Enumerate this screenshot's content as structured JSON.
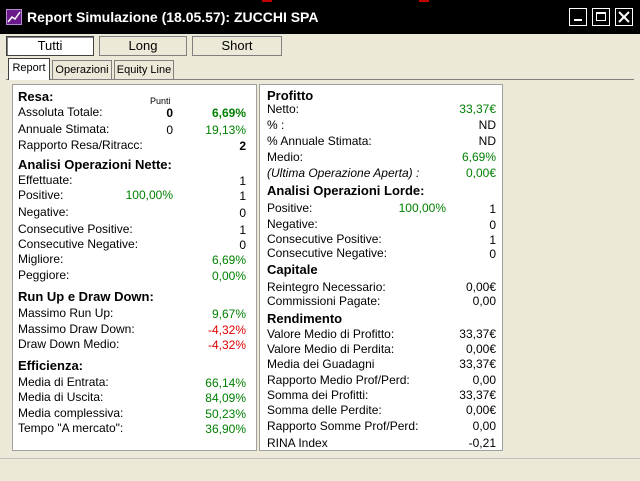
{
  "window": {
    "title": "Report Simulazione (18.05.57): ZUCCHI  SPA"
  },
  "mode_buttons": [
    "Tutti",
    "Long",
    "Short"
  ],
  "tabs": [
    "Report",
    "Operazioni",
    "Equity Line"
  ],
  "left": {
    "resa": {
      "heading": "Resa:",
      "col_header": "Punti",
      "assoluta_label": "Assoluta Totale:",
      "assoluta_punti": "0",
      "assoluta_pct": "6,69%",
      "annuale_label": "Annuale Stimata:",
      "annuale_punti": "0",
      "annuale_pct": "19,13%",
      "rapporto_label": "Rapporto Resa/Ritracc:",
      "rapporto_val": "2"
    },
    "analisi": {
      "heading": "Analisi Operazioni Nette:",
      "effettuate_label": "Effettuate:",
      "effettuate_val": "1",
      "positive_label": "Positive:",
      "positive_pct": "100,00%",
      "positive_val": "1",
      "negative_label": "Negative:",
      "negative_val": "0",
      "cons_pos_label": "Consecutive Positive:",
      "cons_pos_val": "1",
      "cons_neg_label": "Consecutive Negative:",
      "cons_neg_val": "0",
      "migliore_label": "Migliore:",
      "migliore_val": "6,69%",
      "peggiore_label": "Peggiore:",
      "peggiore_val": "0,00%"
    },
    "runup": {
      "heading": "Run Up e Draw Down:",
      "max_runup_label": "Massimo Run Up:",
      "max_runup_val": "9,67%",
      "max_dd_label": "Massimo Draw Down:",
      "max_dd_val": "-4,32%",
      "dd_medio_label": "Draw Down Medio:",
      "dd_medio_val": "-4,32%"
    },
    "efficienza": {
      "heading": "Efficienza:",
      "entrata_label": "Media di Entrata:",
      "entrata_val": "66,14%",
      "uscita_label": "Media di Uscita:",
      "uscita_val": "84,09%",
      "complessiva_label": "Media complessiva:",
      "complessiva_val": "50,23%",
      "tempo_label": "Tempo \"A mercato\":",
      "tempo_val": "36,90%"
    }
  },
  "right": {
    "profitto": {
      "heading": "Profitto",
      "netto_label": "Netto:",
      "netto_val": "33,37€",
      "pct_label": "% :",
      "pct_val": "ND",
      "annuale_label": "% Annuale Stimata:",
      "annuale_val": "ND",
      "medio_label": "Medio:",
      "medio_val": "6,69%",
      "ultima_label": "(Ultima Operazione Aperta) :",
      "ultima_val": "0,00€"
    },
    "lorde": {
      "heading": "Analisi Operazioni Lorde:",
      "positive_label": "Positive:",
      "positive_pct": "100,00%",
      "positive_val": "1",
      "negative_label": "Negative:",
      "negative_val": "0",
      "cons_pos_label": "Consecutive Positive:",
      "cons_pos_val": "1",
      "cons_neg_label": "Consecutive Negative:",
      "cons_neg_val": "0"
    },
    "capitale": {
      "heading": "Capitale",
      "reintegro_label": "Reintegro Necessario:",
      "reintegro_val": "0,00€",
      "commissioni_label": "Commissioni Pagate:",
      "commissioni_val": "0,00"
    },
    "rendimento": {
      "heading": "Rendimento",
      "vm_prof_label": "Valore Medio di Profitto:",
      "vm_prof_val": "33,37€",
      "vm_perd_label": "Valore Medio di Perdita:",
      "vm_perd_val": "0,00€",
      "media_guad_label": "Media dei Guadagni",
      "media_guad_val": "33,37€",
      "rapp_medio_label": "Rapporto Medio Prof/Perd:",
      "rapp_medio_val": "0,00",
      "somma_prof_label": "Somma dei Profitti:",
      "somma_prof_val": "33,37€",
      "somma_perd_label": "Somma delle Perdite:",
      "somma_perd_val": "0,00€",
      "rapp_somme_label": "Rapporto Somme Prof/Perd:",
      "rapp_somme_val": "0,00",
      "rina_label": "RINA Index",
      "rina_val": "-0,21"
    }
  },
  "colors": {
    "positive": "#008000",
    "negative": "#e00000",
    "titlebar": "#000000"
  }
}
